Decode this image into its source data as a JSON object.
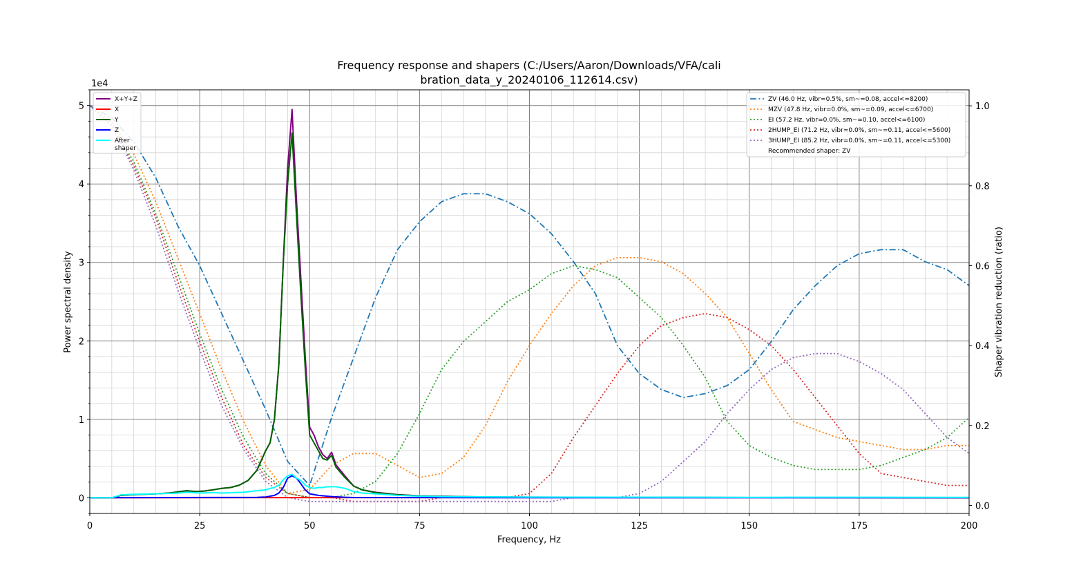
{
  "chart_data": {
    "type": "line",
    "title_line1": "Frequency response and shapers (C:/Users/Aaron/Downloads/VFA/cali",
    "title_line2": "bration_data_y_20240106_112614.csv)",
    "xlabel": "Frequency, Hz",
    "ylabel": "Power spectral density",
    "y2label": "Shaper vibration reduction (ratio)",
    "y_offset_label": "1e4",
    "xlim": [
      0,
      200
    ],
    "ylim": [
      -2000,
      52000
    ],
    "y2lim": [
      -0.02,
      1.04
    ],
    "grid": true,
    "x_ticks": [
      0,
      25,
      50,
      75,
      100,
      125,
      150,
      175,
      200
    ],
    "x_tick_labels": [
      "0",
      "25",
      "50",
      "75",
      "100",
      "125",
      "150",
      "175",
      "200"
    ],
    "y_ticks": [
      0,
      10000,
      20000,
      30000,
      40000,
      50000
    ],
    "y_tick_labels": [
      "0",
      "1",
      "2",
      "3",
      "4",
      "5"
    ],
    "y2_ticks": [
      0,
      0.2,
      0.4,
      0.6,
      0.8,
      1.0
    ],
    "y2_tick_labels": [
      "0.0",
      "0.2",
      "0.4",
      "0.6",
      "0.8",
      "1.0"
    ],
    "psd_legend_position": "top-left",
    "shaper_legend_position": "top-right",
    "psd_series": [
      {
        "name": "X+Y+Z",
        "color": "#800080",
        "x": [
          0,
          5,
          7,
          10,
          15,
          18,
          20,
          22,
          24,
          26,
          28,
          30,
          32,
          34,
          36,
          38,
          40,
          41,
          42,
          43,
          44,
          45,
          46,
          47,
          48,
          49,
          50,
          51,
          52,
          53,
          54,
          55,
          56,
          58,
          60,
          62,
          65,
          70,
          75,
          80,
          90,
          100,
          125,
          150,
          175,
          200
        ],
        "y": [
          0,
          0,
          300,
          400,
          500,
          600,
          750,
          900,
          800,
          850,
          1000,
          1200,
          1300,
          1600,
          2200,
          3500,
          6000,
          7000,
          10000,
          17000,
          30000,
          42000,
          49500,
          38000,
          28000,
          18000,
          9000,
          8000,
          6500,
          5500,
          5000,
          5800,
          4200,
          2800,
          1500,
          1000,
          700,
          400,
          250,
          200,
          100,
          80,
          50,
          30,
          20,
          10
        ]
      },
      {
        "name": "X",
        "color": "#ff0000",
        "x": [
          0,
          50,
          100,
          150,
          200
        ],
        "y": [
          0,
          20,
          20,
          20,
          10
        ]
      },
      {
        "name": "Y",
        "color": "#006400",
        "x": [
          0,
          5,
          7,
          10,
          15,
          18,
          20,
          22,
          24,
          26,
          28,
          30,
          32,
          34,
          36,
          38,
          40,
          41,
          42,
          43,
          44,
          45,
          46,
          47,
          48,
          49,
          50,
          51,
          52,
          53,
          54,
          55,
          56,
          58,
          60,
          62,
          65,
          70,
          75,
          80,
          90,
          100,
          125,
          150,
          175,
          200
        ],
        "y": [
          0,
          0,
          300,
          400,
          500,
          600,
          750,
          900,
          800,
          850,
          1000,
          1200,
          1300,
          1600,
          2200,
          3500,
          6000,
          7000,
          10000,
          17000,
          30000,
          40000,
          46500,
          36000,
          26000,
          16500,
          8000,
          7000,
          6000,
          5000,
          4800,
          5400,
          3900,
          2600,
          1500,
          1000,
          650,
          380,
          230,
          180,
          90,
          70,
          40,
          25,
          15,
          10
        ]
      },
      {
        "name": "Z",
        "color": "#0000ff",
        "x": [
          0,
          38,
          40,
          42,
          43,
          44,
          45,
          46,
          47,
          48,
          49,
          50,
          52,
          55,
          58,
          60,
          100,
          150,
          200
        ],
        "y": [
          0,
          50,
          100,
          300,
          600,
          1300,
          2500,
          2800,
          2500,
          1800,
          1000,
          500,
          300,
          150,
          60,
          30,
          10,
          5,
          5
        ]
      },
      {
        "name": "After\nshaper",
        "color": "#00ffff",
        "x": [
          0,
          5,
          7,
          10,
          15,
          20,
          22,
          25,
          28,
          30,
          35,
          38,
          40,
          41,
          42,
          43,
          44,
          45,
          46,
          47,
          48,
          49,
          50,
          51,
          52,
          53,
          54,
          55,
          56,
          58,
          60,
          62,
          65,
          70,
          75,
          80,
          100,
          150,
          175,
          200
        ],
        "y": [
          0,
          0,
          350,
          450,
          500,
          600,
          700,
          600,
          650,
          600,
          700,
          900,
          1000,
          1200,
          1300,
          1600,
          2300,
          2800,
          3000,
          2500,
          2200,
          1600,
          1300,
          1200,
          1300,
          1300,
          1400,
          1400,
          1400,
          1200,
          800,
          600,
          500,
          300,
          200,
          150,
          80,
          50,
          60,
          40
        ]
      }
    ],
    "shaper_series": [
      {
        "name": "ZV (46.0 Hz, vibr=0.5%, sm~=0.08, accel<=8200)",
        "color": "#1f77b4",
        "style": "dashdot",
        "x": [
          0,
          5,
          10,
          15,
          20,
          25,
          30,
          35,
          40,
          45,
          50,
          55,
          60,
          65,
          70,
          75,
          80,
          85,
          90,
          95,
          100,
          105,
          110,
          115,
          120,
          125,
          130,
          135,
          140,
          145,
          150,
          155,
          160,
          165,
          170,
          175,
          180,
          185,
          190,
          195,
          200
        ],
        "y": [
          1.0,
          0.97,
          0.91,
          0.82,
          0.7,
          0.6,
          0.48,
          0.36,
          0.24,
          0.11,
          0.05,
          0.22,
          0.37,
          0.52,
          0.64,
          0.71,
          0.76,
          0.78,
          0.78,
          0.76,
          0.73,
          0.68,
          0.61,
          0.53,
          0.4,
          0.33,
          0.29,
          0.27,
          0.28,
          0.3,
          0.34,
          0.41,
          0.49,
          0.55,
          0.6,
          0.63,
          0.64,
          0.64,
          0.61,
          0.59,
          0.55
        ]
      },
      {
        "name": "MZV (47.8 Hz, vibr=0.0%, sm~=0.09, accel<=6700)",
        "color": "#ff7f0e",
        "style": "dotted",
        "x": [
          0,
          5,
          10,
          15,
          20,
          25,
          30,
          35,
          40,
          45,
          50,
          55,
          60,
          65,
          70,
          75,
          80,
          85,
          90,
          95,
          100,
          105,
          110,
          115,
          120,
          125,
          130,
          135,
          140,
          145,
          150,
          155,
          160,
          165,
          170,
          175,
          180,
          185,
          190,
          195,
          200
        ],
        "y": [
          1.0,
          0.96,
          0.88,
          0.76,
          0.62,
          0.48,
          0.34,
          0.21,
          0.1,
          0.03,
          0.04,
          0.1,
          0.13,
          0.13,
          0.1,
          0.07,
          0.08,
          0.12,
          0.2,
          0.31,
          0.4,
          0.48,
          0.55,
          0.6,
          0.62,
          0.62,
          0.61,
          0.58,
          0.53,
          0.47,
          0.38,
          0.29,
          0.21,
          0.19,
          0.17,
          0.16,
          0.15,
          0.14,
          0.14,
          0.15,
          0.15
        ]
      },
      {
        "name": "EI (57.2 Hz, vibr=0.0%, sm~=0.10, accel<=6100)",
        "color": "#2ca02c",
        "style": "dotted",
        "x": [
          0,
          5,
          10,
          15,
          20,
          25,
          30,
          35,
          40,
          45,
          50,
          55,
          60,
          65,
          70,
          75,
          80,
          85,
          90,
          95,
          100,
          105,
          110,
          115,
          120,
          125,
          130,
          135,
          140,
          145,
          150,
          155,
          160,
          165,
          170,
          175,
          180,
          185,
          190,
          195,
          200
        ],
        "y": [
          1.0,
          0.95,
          0.86,
          0.73,
          0.58,
          0.43,
          0.29,
          0.17,
          0.08,
          0.03,
          0.02,
          0.02,
          0.03,
          0.06,
          0.13,
          0.23,
          0.34,
          0.41,
          0.46,
          0.51,
          0.54,
          0.58,
          0.6,
          0.59,
          0.57,
          0.52,
          0.47,
          0.4,
          0.32,
          0.21,
          0.15,
          0.12,
          0.1,
          0.09,
          0.09,
          0.09,
          0.1,
          0.12,
          0.14,
          0.17,
          0.22
        ]
      },
      {
        "name": "2HUMP_EI (71.2 Hz, vibr=0.0%, sm~=0.11, accel<=5600)",
        "color": "#d62728",
        "style": "dotted",
        "x": [
          0,
          5,
          10,
          15,
          20,
          25,
          30,
          35,
          40,
          45,
          50,
          55,
          60,
          65,
          70,
          75,
          80,
          85,
          90,
          95,
          100,
          105,
          110,
          115,
          120,
          125,
          130,
          135,
          140,
          145,
          150,
          155,
          160,
          165,
          170,
          175,
          180,
          185,
          190,
          195,
          200
        ],
        "y": [
          1.0,
          0.95,
          0.85,
          0.72,
          0.56,
          0.41,
          0.27,
          0.15,
          0.07,
          0.03,
          0.02,
          0.02,
          0.01,
          0.01,
          0.01,
          0.01,
          0.02,
          0.02,
          0.02,
          0.02,
          0.03,
          0.08,
          0.17,
          0.25,
          0.33,
          0.4,
          0.45,
          0.47,
          0.48,
          0.47,
          0.44,
          0.4,
          0.34,
          0.27,
          0.2,
          0.13,
          0.08,
          0.07,
          0.06,
          0.05,
          0.05
        ]
      },
      {
        "name": "3HUMP_EI (85.2 Hz, vibr=0.0%, sm~=0.11, accel<=5300)",
        "color": "#9467bd",
        "style": "dotted",
        "x": [
          0,
          5,
          10,
          15,
          20,
          25,
          30,
          35,
          40,
          45,
          50,
          55,
          60,
          65,
          70,
          75,
          80,
          85,
          90,
          95,
          100,
          105,
          110,
          115,
          120,
          125,
          130,
          135,
          140,
          145,
          150,
          155,
          160,
          165,
          170,
          175,
          180,
          185,
          190,
          195,
          200
        ],
        "y": [
          1.0,
          0.95,
          0.84,
          0.7,
          0.54,
          0.39,
          0.25,
          0.14,
          0.06,
          0.02,
          0.01,
          0.01,
          0.01,
          0.01,
          0.01,
          0.01,
          0.01,
          0.01,
          0.01,
          0.01,
          0.01,
          0.01,
          0.02,
          0.02,
          0.02,
          0.03,
          0.06,
          0.11,
          0.16,
          0.23,
          0.29,
          0.34,
          0.37,
          0.38,
          0.38,
          0.36,
          0.33,
          0.29,
          0.23,
          0.17,
          0.13
        ]
      }
    ],
    "recommended_label": "Recommended shaper: ZV"
  }
}
